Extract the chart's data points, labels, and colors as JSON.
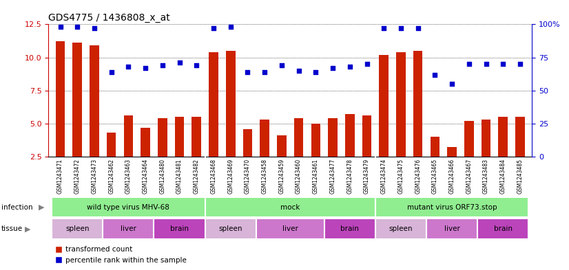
{
  "title": "GDS4775 / 1436808_x_at",
  "samples": [
    "GSM1243471",
    "GSM1243472",
    "GSM1243473",
    "GSM1243462",
    "GSM1243463",
    "GSM1243464",
    "GSM1243480",
    "GSM1243481",
    "GSM1243482",
    "GSM1243468",
    "GSM1243469",
    "GSM1243470",
    "GSM1243458",
    "GSM1243459",
    "GSM1243460",
    "GSM1243461",
    "GSM1243477",
    "GSM1243478",
    "GSM1243479",
    "GSM1243474",
    "GSM1243475",
    "GSM1243476",
    "GSM1243465",
    "GSM1243466",
    "GSM1243467",
    "GSM1243483",
    "GSM1243484",
    "GSM1243485"
  ],
  "transformed_count": [
    11.2,
    11.1,
    10.9,
    4.3,
    5.6,
    4.7,
    5.4,
    5.5,
    5.5,
    10.4,
    10.5,
    4.6,
    5.3,
    4.1,
    5.4,
    5.0,
    5.4,
    5.7,
    5.6,
    10.2,
    10.4,
    10.5,
    4.0,
    3.2,
    5.2,
    5.3,
    5.5,
    5.5
  ],
  "percentile_rank": [
    98,
    98,
    97,
    64,
    68,
    67,
    69,
    71,
    69,
    97,
    98,
    64,
    64,
    69,
    65,
    64,
    67,
    68,
    70,
    97,
    97,
    97,
    62,
    55,
    70,
    70,
    70,
    70
  ],
  "infection_groups": [
    {
      "label": "wild type virus MHV-68",
      "start": 0,
      "end": 9
    },
    {
      "label": "mock",
      "start": 9,
      "end": 19
    },
    {
      "label": "mutant virus ORF73.stop",
      "start": 19,
      "end": 28
    }
  ],
  "tissue_groups": [
    {
      "label": "spleen",
      "start": 0,
      "end": 3,
      "color": "#D8B4D8"
    },
    {
      "label": "liver",
      "start": 3,
      "end": 6,
      "color": "#CC77CC"
    },
    {
      "label": "brain",
      "start": 6,
      "end": 9,
      "color": "#BB44BB"
    },
    {
      "label": "spleen",
      "start": 9,
      "end": 12,
      "color": "#D8B4D8"
    },
    {
      "label": "liver",
      "start": 12,
      "end": 16,
      "color": "#CC77CC"
    },
    {
      "label": "brain",
      "start": 16,
      "end": 19,
      "color": "#BB44BB"
    },
    {
      "label": "spleen",
      "start": 19,
      "end": 22,
      "color": "#D8B4D8"
    },
    {
      "label": "liver",
      "start": 22,
      "end": 25,
      "color": "#CC77CC"
    },
    {
      "label": "brain",
      "start": 25,
      "end": 28,
      "color": "#BB44BB"
    }
  ],
  "bar_color": "#CC2200",
  "dot_color": "#0000CC",
  "ylim_left": [
    2.5,
    12.5
  ],
  "ylim_right": [
    0,
    100
  ],
  "yticks_left": [
    2.5,
    5.0,
    7.5,
    10.0,
    12.5
  ],
  "yticks_right": [
    0,
    25,
    50,
    75,
    100
  ],
  "left_axis_color": "#CC0000",
  "right_axis_color": "#0000CC",
  "infection_color": "#90EE90",
  "xlabel_bg": "#D8D8D8"
}
